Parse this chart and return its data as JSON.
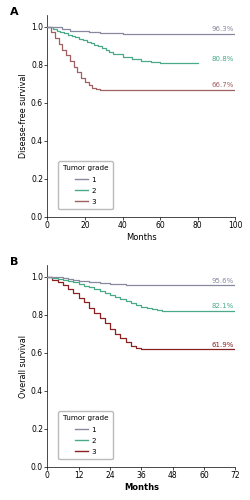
{
  "panel_A": {
    "title": "A",
    "ylabel": "Disease-free survival",
    "xlabel": "Months",
    "xlim": [
      0,
      100
    ],
    "ylim": [
      0.0,
      1.06
    ],
    "xticks": [
      0,
      20,
      40,
      60,
      80,
      100
    ],
    "yticks": [
      0.0,
      0.2,
      0.4,
      0.6,
      0.8,
      1.0
    ],
    "grade1_color": "#8888a0",
    "grade2_color": "#4aaa88",
    "grade3_color": "#a06060",
    "grade1_label": "96.3%",
    "grade2_label": "80.8%",
    "grade3_label": "66.7%",
    "grade1_x": [
      0,
      5,
      8,
      10,
      12,
      15,
      18,
      22,
      28,
      35,
      40,
      50,
      60,
      70,
      80,
      90,
      100
    ],
    "grade1_y": [
      1.0,
      1.0,
      0.99,
      0.99,
      0.98,
      0.98,
      0.975,
      0.971,
      0.968,
      0.965,
      0.963,
      0.963,
      0.963,
      0.963,
      0.963,
      0.963,
      0.963
    ],
    "grade2_x": [
      0,
      3,
      5,
      7,
      9,
      11,
      13,
      15,
      17,
      19,
      21,
      23,
      25,
      27,
      29,
      31,
      33,
      35,
      40,
      45,
      50,
      55,
      60,
      65,
      70,
      75,
      80
    ],
    "grade2_y": [
      1.0,
      0.99,
      0.98,
      0.97,
      0.965,
      0.958,
      0.952,
      0.945,
      0.938,
      0.93,
      0.922,
      0.915,
      0.906,
      0.898,
      0.888,
      0.878,
      0.868,
      0.858,
      0.84,
      0.828,
      0.82,
      0.814,
      0.81,
      0.808,
      0.808,
      0.808,
      0.808
    ],
    "grade3_x": [
      0,
      2,
      4,
      6,
      8,
      10,
      12,
      14,
      16,
      18,
      20,
      22,
      24,
      26,
      28,
      30,
      32,
      34,
      36,
      50,
      70,
      100
    ],
    "grade3_y": [
      1.0,
      0.97,
      0.94,
      0.91,
      0.88,
      0.85,
      0.82,
      0.79,
      0.76,
      0.73,
      0.71,
      0.695,
      0.68,
      0.672,
      0.668,
      0.667,
      0.667,
      0.667,
      0.667,
      0.667,
      0.667,
      0.667
    ]
  },
  "panel_B": {
    "title": "B",
    "ylabel": "Overall survival",
    "xlabel": "Months",
    "xlim": [
      0,
      72
    ],
    "ylim": [
      0.0,
      1.06
    ],
    "xticks": [
      0,
      12,
      24,
      36,
      48,
      60,
      72
    ],
    "yticks": [
      0.0,
      0.2,
      0.4,
      0.6,
      0.8,
      1.0
    ],
    "grade1_color": "#8888a0",
    "grade2_color": "#4aaa88",
    "grade3_color": "#8b2020",
    "grade1_label": "95.6%",
    "grade2_label": "82.1%",
    "grade3_label": "61.9%",
    "grade1_x": [
      0,
      4,
      6,
      8,
      10,
      12,
      14,
      16,
      18,
      20,
      22,
      24,
      26,
      30,
      36,
      42,
      48,
      54,
      60,
      66,
      72
    ],
    "grade1_y": [
      1.0,
      1.0,
      0.995,
      0.99,
      0.985,
      0.98,
      0.975,
      0.972,
      0.97,
      0.968,
      0.965,
      0.962,
      0.96,
      0.958,
      0.958,
      0.957,
      0.957,
      0.957,
      0.956,
      0.956,
      0.956
    ],
    "grade2_x": [
      0,
      2,
      4,
      6,
      8,
      10,
      12,
      14,
      16,
      18,
      20,
      22,
      24,
      26,
      28,
      30,
      32,
      34,
      36,
      38,
      40,
      42,
      44,
      48,
      54,
      60,
      66,
      72
    ],
    "grade2_y": [
      1.0,
      0.995,
      0.99,
      0.985,
      0.978,
      0.97,
      0.962,
      0.953,
      0.944,
      0.935,
      0.926,
      0.916,
      0.906,
      0.895,
      0.884,
      0.873,
      0.862,
      0.85,
      0.84,
      0.834,
      0.828,
      0.825,
      0.822,
      0.821,
      0.821,
      0.821,
      0.821,
      0.821
    ],
    "grade3_x": [
      0,
      2,
      4,
      6,
      8,
      10,
      12,
      14,
      16,
      18,
      20,
      22,
      24,
      26,
      28,
      30,
      32,
      34,
      36,
      50,
      60,
      72
    ],
    "grade3_y": [
      1.0,
      0.985,
      0.97,
      0.955,
      0.935,
      0.915,
      0.89,
      0.865,
      0.838,
      0.81,
      0.782,
      0.754,
      0.724,
      0.7,
      0.678,
      0.655,
      0.638,
      0.625,
      0.619,
      0.619,
      0.619,
      0.619
    ]
  },
  "legend_title": "Tumor grade",
  "legend_labels": [
    "1",
    "2",
    "3"
  ],
  "font_family": "DejaVu Sans"
}
